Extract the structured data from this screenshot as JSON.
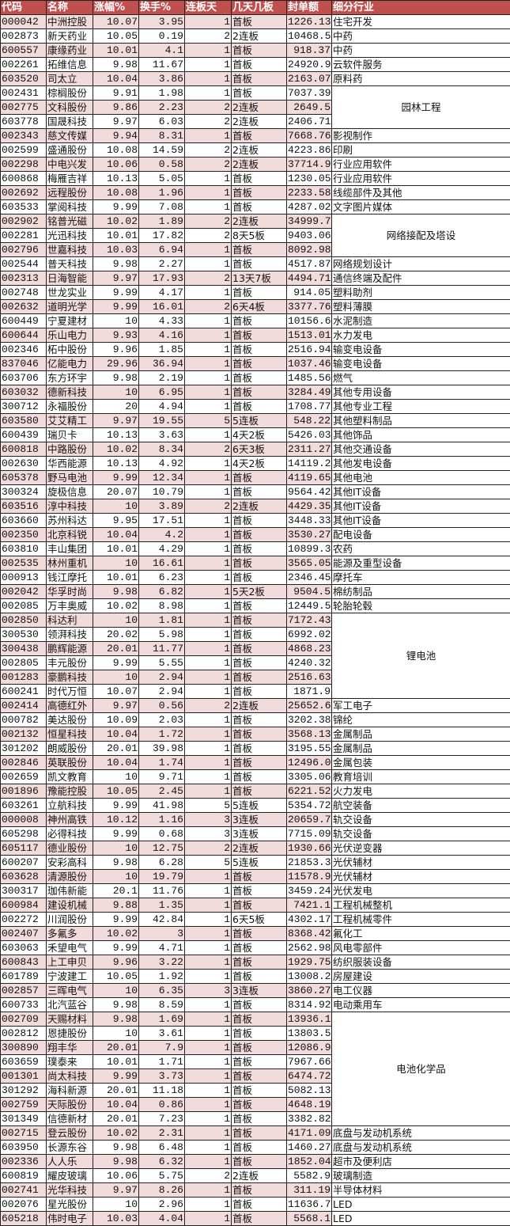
{
  "colors": {
    "header_bg": "#c0504d",
    "header_text": "#ffffff",
    "odd_row_bg": "#f2dcdb",
    "even_row_bg": "#ffffff"
  },
  "headers": [
    "代码",
    "名称",
    "涨幅%",
    "换手%",
    "连板天",
    "几天几板",
    "封单额",
    "细分行业"
  ],
  "rows": [
    {
      "code": "000042",
      "name": "中洲控股",
      "chg": "10.07",
      "turn": "3.95",
      "days": "1",
      "board": "首板",
      "seal": "1226.13",
      "industry": "住宅开发",
      "span": 1
    },
    {
      "code": "002873",
      "name": "新天药业",
      "chg": "10.05",
      "turn": "0.19",
      "days": "2",
      "board": "2连板",
      "seal": "10468.5",
      "industry": "中药",
      "span": 1
    },
    {
      "code": "600557",
      "name": "康缘药业",
      "chg": "10.01",
      "turn": "4.1",
      "days": "1",
      "board": "首板",
      "seal": "918.37",
      "industry": "中药",
      "span": 1
    },
    {
      "code": "002261",
      "name": "拓维信息",
      "chg": "9.98",
      "turn": "11.67",
      "days": "1",
      "board": "首板",
      "seal": "24920.95",
      "industry": "云软件服务",
      "span": 1
    },
    {
      "code": "603520",
      "name": "司太立",
      "chg": "10.04",
      "turn": "3.86",
      "days": "1",
      "board": "首板",
      "seal": "2163.07",
      "industry": "原料药",
      "span": 1
    },
    {
      "code": "002431",
      "name": "棕榈股份",
      "chg": "9.91",
      "turn": "1.98",
      "days": "1",
      "board": "首板",
      "seal": "7037.39",
      "industry": "园林工程",
      "span": 3
    },
    {
      "code": "002775",
      "name": "文科股份",
      "chg": "9.86",
      "turn": "2.23",
      "days": "2",
      "board": "2连板",
      "seal": "2649.5",
      "industry": null
    },
    {
      "code": "603778",
      "name": "国晟科技",
      "chg": "9.97",
      "turn": "6.03",
      "days": "2",
      "board": "2连板",
      "seal": "2406.71",
      "industry": null
    },
    {
      "code": "002343",
      "name": "慈文传媒",
      "chg": "9.94",
      "turn": "8.31",
      "days": "1",
      "board": "首板",
      "seal": "7668.76",
      "industry": "影视制作",
      "span": 1
    },
    {
      "code": "002599",
      "name": "盛通股份",
      "chg": "10.08",
      "turn": "14.59",
      "days": "2",
      "board": "2连板",
      "seal": "4223.86",
      "industry": "印刷",
      "span": 1
    },
    {
      "code": "002298",
      "name": "中电兴发",
      "chg": "10.06",
      "turn": "0.58",
      "days": "2",
      "board": "2连板",
      "seal": "37714.95",
      "industry": "行业应用软件",
      "span": 1
    },
    {
      "code": "600868",
      "name": "梅雁吉祥",
      "chg": "10.13",
      "turn": "5.05",
      "days": "1",
      "board": "首板",
      "seal": "1230.05",
      "industry": "行业应用软件",
      "span": 1
    },
    {
      "code": "002692",
      "name": "远程股份",
      "chg": "10.08",
      "turn": "1.96",
      "days": "1",
      "board": "首板",
      "seal": "2233.58",
      "industry": "线缆部件及其他",
      "span": 1
    },
    {
      "code": "603533",
      "name": "掌阅科技",
      "chg": "9.99",
      "turn": "7.08",
      "days": "1",
      "board": "首板",
      "seal": "4287.02",
      "industry": "文字图片媒体",
      "span": 1
    },
    {
      "code": "002902",
      "name": "铭普光磁",
      "chg": "10.02",
      "turn": "1.89",
      "days": "2",
      "board": "2连板",
      "seal": "34999.76",
      "industry": "网络接配及塔设",
      "span": 3
    },
    {
      "code": "002281",
      "name": "光迅科技",
      "chg": "10.01",
      "turn": "17.82",
      "days": "2",
      "board": "8天5板",
      "seal": "9403.06",
      "industry": null
    },
    {
      "code": "002796",
      "name": "世嘉科技",
      "chg": "10.03",
      "turn": "6.94",
      "days": "1",
      "board": "首板",
      "seal": "8092.98",
      "industry": null
    },
    {
      "code": "002544",
      "name": "普天科技",
      "chg": "9.98",
      "turn": "2.27",
      "days": "1",
      "board": "首板",
      "seal": "4517.87",
      "industry": "网络规划设计",
      "span": 1
    },
    {
      "code": "002313",
      "name": "日海智能",
      "chg": "9.97",
      "turn": "17.93",
      "days": "2",
      "board": "13天7板",
      "seal": "4494.71",
      "industry": "通信终端及配件",
      "span": 1
    },
    {
      "code": "002748",
      "name": "世龙实业",
      "chg": "9.99",
      "turn": "4.17",
      "days": "1",
      "board": "首板",
      "seal": "914.05",
      "industry": "塑料助剂",
      "span": 1
    },
    {
      "code": "002632",
      "name": "道明光学",
      "chg": "9.99",
      "turn": "16.01",
      "days": "2",
      "board": "6天4板",
      "seal": "3377.76",
      "industry": "塑料薄膜",
      "span": 1
    },
    {
      "code": "600449",
      "name": "宁夏建材",
      "chg": "10",
      "turn": "4.33",
      "days": "1",
      "board": "首板",
      "seal": "10156.69",
      "industry": "水泥制造",
      "span": 1
    },
    {
      "code": "600644",
      "name": "乐山电力",
      "chg": "9.93",
      "turn": "4.16",
      "days": "1",
      "board": "首板",
      "seal": "1513.01",
      "industry": "水力发电",
      "span": 1
    },
    {
      "code": "002346",
      "name": "柘中股份",
      "chg": "9.96",
      "turn": "1.85",
      "days": "1",
      "board": "首板",
      "seal": "2516.94",
      "industry": "输变电设备",
      "span": 1
    },
    {
      "code": "837046",
      "name": "亿能电力",
      "chg": "29.96",
      "turn": "36.94",
      "days": "1",
      "board": "首板",
      "seal": "1037.46",
      "industry": "输变电设备",
      "span": 1
    },
    {
      "code": "603706",
      "name": "东方环宇",
      "chg": "9.98",
      "turn": "2.19",
      "days": "1",
      "board": "首板",
      "seal": "1485.56",
      "industry": "燃气",
      "span": 1
    },
    {
      "code": "603032",
      "name": "德新科技",
      "chg": "10",
      "turn": "6.95",
      "days": "1",
      "board": "首板",
      "seal": "3284.49",
      "industry": "其他专用设备",
      "span": 1
    },
    {
      "code": "300712",
      "name": "永福股份",
      "chg": "20",
      "turn": "4.94",
      "days": "1",
      "board": "首板",
      "seal": "1708.77",
      "industry": "其他专业工程",
      "span": 1
    },
    {
      "code": "603580",
      "name": "艾艾精工",
      "chg": "9.97",
      "turn": "19.55",
      "days": "5",
      "board": "5连板",
      "seal": "548.22",
      "industry": "其他塑料制品",
      "span": 1
    },
    {
      "code": "600439",
      "name": "瑞贝卡",
      "chg": "10.13",
      "turn": "3.63",
      "days": "1",
      "board": "4天2板",
      "seal": "5426.03",
      "industry": "其他饰品",
      "span": 1
    },
    {
      "code": "600818",
      "name": "中路股份",
      "chg": "10.02",
      "turn": "8.34",
      "days": "2",
      "board": "6天3板",
      "seal": "2311.27",
      "industry": "其他交通设备",
      "span": 1
    },
    {
      "code": "002630",
      "name": "华西能源",
      "chg": "10.13",
      "turn": "4.92",
      "days": "1",
      "board": "4天2板",
      "seal": "14119.26",
      "industry": "其他发电设备",
      "span": 1
    },
    {
      "code": "605378",
      "name": "野马电池",
      "chg": "9.99",
      "turn": "12.34",
      "days": "1",
      "board": "首板",
      "seal": "4119.65",
      "industry": "其他电池",
      "span": 1
    },
    {
      "code": "300324",
      "name": "旋极信息",
      "chg": "20.07",
      "turn": "10.79",
      "days": "1",
      "board": "首板",
      "seal": "9564.42",
      "industry": "其他IT设备",
      "span": 1
    },
    {
      "code": "603516",
      "name": "淳中科技",
      "chg": "10",
      "turn": "3.89",
      "days": "2",
      "board": "2连板",
      "seal": "4429.35",
      "industry": "其他IT设备",
      "span": 1
    },
    {
      "code": "603660",
      "name": "苏州科达",
      "chg": "9.95",
      "turn": "17.51",
      "days": "1",
      "board": "首板",
      "seal": "3448.33",
      "industry": "其他IT设备",
      "span": 1
    },
    {
      "code": "002350",
      "name": "北京科锐",
      "chg": "10.04",
      "turn": "4.2",
      "days": "1",
      "board": "首板",
      "seal": "3530.27",
      "industry": "配电设备",
      "span": 1
    },
    {
      "code": "603810",
      "name": "丰山集团",
      "chg": "10.01",
      "turn": "4.29",
      "days": "1",
      "board": "首板",
      "seal": "10899.37",
      "industry": "农药",
      "span": 1
    },
    {
      "code": "002535",
      "name": "林州重机",
      "chg": "10",
      "turn": "16.61",
      "days": "1",
      "board": "首板",
      "seal": "3565.05",
      "industry": "能源及重型设备",
      "span": 1
    },
    {
      "code": "000913",
      "name": "钱江摩托",
      "chg": "10.01",
      "turn": "6.23",
      "days": "1",
      "board": "首板",
      "seal": "2346.45",
      "industry": "摩托车",
      "span": 1
    },
    {
      "code": "002042",
      "name": "华孚时尚",
      "chg": "9.98",
      "turn": "6.82",
      "days": "1",
      "board": "5天2板",
      "seal": "9504.5",
      "industry": "棉纺制品",
      "span": 1
    },
    {
      "code": "002085",
      "name": "万丰奥威",
      "chg": "10.02",
      "turn": "8.98",
      "days": "1",
      "board": "首板",
      "seal": "12449.52",
      "industry": "轮胎轮毂",
      "span": 1
    },
    {
      "code": "002850",
      "name": "科达利",
      "chg": "10",
      "turn": "1.81",
      "days": "1",
      "board": "首板",
      "seal": "7172.43",
      "industry": "锂电池",
      "span": 6
    },
    {
      "code": "300530",
      "name": "领湃科技",
      "chg": "20.02",
      "turn": "5.98",
      "days": "1",
      "board": "首板",
      "seal": "6992.02",
      "industry": null
    },
    {
      "code": "300438",
      "name": "鹏辉能源",
      "chg": "20.01",
      "turn": "11.77",
      "days": "1",
      "board": "首板",
      "seal": "4868.23",
      "industry": null
    },
    {
      "code": "002805",
      "name": "丰元股份",
      "chg": "9.99",
      "turn": "5.55",
      "days": "1",
      "board": "首板",
      "seal": "4240.32",
      "industry": null
    },
    {
      "code": "001283",
      "name": "豪鹏科技",
      "chg": "10",
      "turn": "2.94",
      "days": "1",
      "board": "首板",
      "seal": "2516.63",
      "industry": null
    },
    {
      "code": "600241",
      "name": "时代万恒",
      "chg": "10.07",
      "turn": "2.94",
      "days": "1",
      "board": "首板",
      "seal": "1871.9",
      "industry": null
    },
    {
      "code": "002414",
      "name": "高德红外",
      "chg": "9.97",
      "turn": "0.56",
      "days": "2",
      "board": "2连板",
      "seal": "25652.63",
      "industry": "军工电子",
      "span": 1
    },
    {
      "code": "000782",
      "name": "美达股份",
      "chg": "10.09",
      "turn": "2.03",
      "days": "1",
      "board": "首板",
      "seal": "3202.38",
      "industry": "锦纶",
      "span": 1
    },
    {
      "code": "002132",
      "name": "恒星科技",
      "chg": "10.04",
      "turn": "1.72",
      "days": "1",
      "board": "首板",
      "seal": "3568.13",
      "industry": "金属制品",
      "span": 1
    },
    {
      "code": "301202",
      "name": "朗威股份",
      "chg": "20.01",
      "turn": "39.98",
      "days": "1",
      "board": "首板",
      "seal": "3195.55",
      "industry": "金属制品",
      "span": 1
    },
    {
      "code": "002846",
      "name": "英联股份",
      "chg": "10.04",
      "turn": "1.74",
      "days": "1",
      "board": "首板",
      "seal": "12496.08",
      "industry": "金属包装",
      "span": 1
    },
    {
      "code": "002659",
      "name": "凯文教育",
      "chg": "10",
      "turn": "9.71",
      "days": "1",
      "board": "首板",
      "seal": "3305.06",
      "industry": "教育培训",
      "span": 1
    },
    {
      "code": "001896",
      "name": "豫能控股",
      "chg": "10.05",
      "turn": "2.45",
      "days": "1",
      "board": "首板",
      "seal": "6221.52",
      "industry": "火力发电",
      "span": 1
    },
    {
      "code": "603261",
      "name": "立航科技",
      "chg": "9.99",
      "turn": "41.98",
      "days": "5",
      "board": "5连板",
      "seal": "5354.72",
      "industry": "航空装备",
      "span": 1
    },
    {
      "code": "000008",
      "name": "神州高铁",
      "chg": "10.12",
      "turn": "1.16",
      "days": "3",
      "board": "3连板",
      "seal": "20659.74",
      "industry": "轨交设备",
      "span": 1
    },
    {
      "code": "605298",
      "name": "必得科技",
      "chg": "9.99",
      "turn": "0.68",
      "days": "3",
      "board": "3连板",
      "seal": "7715.09",
      "industry": "轨交设备",
      "span": 1
    },
    {
      "code": "605117",
      "name": "德业股份",
      "chg": "10",
      "turn": "12.75",
      "days": "2",
      "board": "2连板",
      "seal": "1930.66",
      "industry": "光伏逆变器",
      "span": 1
    },
    {
      "code": "600207",
      "name": "安彩高科",
      "chg": "9.98",
      "turn": "6.28",
      "days": "5",
      "board": "5连板",
      "seal": "21853.33",
      "industry": "光伏辅材",
      "span": 1
    },
    {
      "code": "603628",
      "name": "清源股份",
      "chg": "10",
      "turn": "19.79",
      "days": "1",
      "board": "首板",
      "seal": "11578.98",
      "industry": "光伏辅材",
      "span": 1
    },
    {
      "code": "300317",
      "name": "珈伟新能",
      "chg": "20.1",
      "turn": "11.76",
      "days": "1",
      "board": "首板",
      "seal": "3459.24",
      "industry": "光伏发电",
      "span": 1
    },
    {
      "code": "600984",
      "name": "建设机械",
      "chg": "9.88",
      "turn": "1.35",
      "days": "1",
      "board": "首板",
      "seal": "7421.1",
      "industry": "工程机械整机",
      "span": 1
    },
    {
      "code": "002272",
      "name": "川润股份",
      "chg": "9.99",
      "turn": "42.84",
      "days": "1",
      "board": "6天5板",
      "seal": "4302.17",
      "industry": "工程机械零件",
      "span": 1
    },
    {
      "code": "002407",
      "name": "多氟多",
      "chg": "10.02",
      "turn": "3",
      "days": "1",
      "board": "首板",
      "seal": "8368.42",
      "industry": "氟化工",
      "span": 1
    },
    {
      "code": "603063",
      "name": "禾望电气",
      "chg": "9.99",
      "turn": "4.71",
      "days": "1",
      "board": "首板",
      "seal": "2562.98",
      "industry": "风电零部件",
      "span": 1
    },
    {
      "code": "600843",
      "name": "上工申贝",
      "chg": "9.96",
      "turn": "3.22",
      "days": "1",
      "board": "首板",
      "seal": "1929.75",
      "industry": "纺织服装设备",
      "span": 1
    },
    {
      "code": "601789",
      "name": "宁波建工",
      "chg": "10.05",
      "turn": "1.92",
      "days": "1",
      "board": "首板",
      "seal": "13008.29",
      "industry": "房屋建设",
      "span": 1
    },
    {
      "code": "002857",
      "name": "三晖电气",
      "chg": "10",
      "turn": "6.35",
      "days": "3",
      "board": "3连板",
      "seal": "3860.27",
      "industry": "电工仪器",
      "span": 1
    },
    {
      "code": "600733",
      "name": "北汽蓝谷",
      "chg": "9.98",
      "turn": "8.59",
      "days": "1",
      "board": "首板",
      "seal": "8314.92",
      "industry": "电动乘用车",
      "span": 1
    },
    {
      "code": "002709",
      "name": "天赐材料",
      "chg": "9.98",
      "turn": "1.69",
      "days": "1",
      "board": "首板",
      "seal": "13936.1",
      "industry": "电池化学品",
      "span": 8
    },
    {
      "code": "002812",
      "name": "恩捷股份",
      "chg": "10",
      "turn": "3.61",
      "days": "1",
      "board": "首板",
      "seal": "13803.55",
      "industry": null
    },
    {
      "code": "300890",
      "name": "翔丰华",
      "chg": "20.01",
      "turn": "7.9",
      "days": "1",
      "board": "首板",
      "seal": "12086.98",
      "industry": null
    },
    {
      "code": "603659",
      "name": "璞泰来",
      "chg": "10.01",
      "turn": "1.71",
      "days": "1",
      "board": "首板",
      "seal": "7967.66",
      "industry": null
    },
    {
      "code": "001301",
      "name": "尚太科技",
      "chg": "9.99",
      "turn": "3.73",
      "days": "1",
      "board": "首板",
      "seal": "6474.72",
      "industry": null
    },
    {
      "code": "301292",
      "name": "海科新源",
      "chg": "20.01",
      "turn": "11.18",
      "days": "1",
      "board": "首板",
      "seal": "5082.13",
      "industry": null
    },
    {
      "code": "002759",
      "name": "天际股份",
      "chg": "10.04",
      "turn": "0.86",
      "days": "1",
      "board": "首板",
      "seal": "4648.19",
      "industry": null
    },
    {
      "code": "301349",
      "name": "信德新材",
      "chg": "20.01",
      "turn": "7.23",
      "days": "1",
      "board": "首板",
      "seal": "3382.82",
      "industry": null
    },
    {
      "code": "002715",
      "name": "登云股份",
      "chg": "10.02",
      "turn": "2.31",
      "days": "1",
      "board": "首板",
      "seal": "4171.09",
      "industry": "底盘与发动机系统",
      "span": 1
    },
    {
      "code": "603950",
      "name": "长源东谷",
      "chg": "9.98",
      "turn": "6.48",
      "days": "1",
      "board": "首板",
      "seal": "1460.27",
      "industry": "底盘与发动机系统",
      "span": 1
    },
    {
      "code": "002336",
      "name": "人人乐",
      "chg": "9.98",
      "turn": "6.32",
      "days": "1",
      "board": "首板",
      "seal": "1852.04",
      "industry": "超市及便利店",
      "span": 1
    },
    {
      "code": "600819",
      "name": "耀皮玻璃",
      "chg": "10.06",
      "turn": "5.75",
      "days": "2",
      "board": "2连板",
      "seal": "5582.9",
      "industry": "玻璃制造",
      "span": 1
    },
    {
      "code": "002741",
      "name": "光华科技",
      "chg": "9.97",
      "turn": "8.26",
      "days": "1",
      "board": "首板",
      "seal": "311.19",
      "industry": "半导体材料",
      "span": 1
    },
    {
      "code": "002076",
      "name": "星光股份",
      "chg": "10",
      "turn": "2.96",
      "days": "1",
      "board": "首板",
      "seal": "11636.74",
      "industry": "LED",
      "span": 1
    },
    {
      "code": "605218",
      "name": "伟时电子",
      "chg": "10.03",
      "turn": "4.04",
      "days": "1",
      "board": "首板",
      "seal": "5568.1",
      "industry": "LED",
      "span": 1
    }
  ]
}
